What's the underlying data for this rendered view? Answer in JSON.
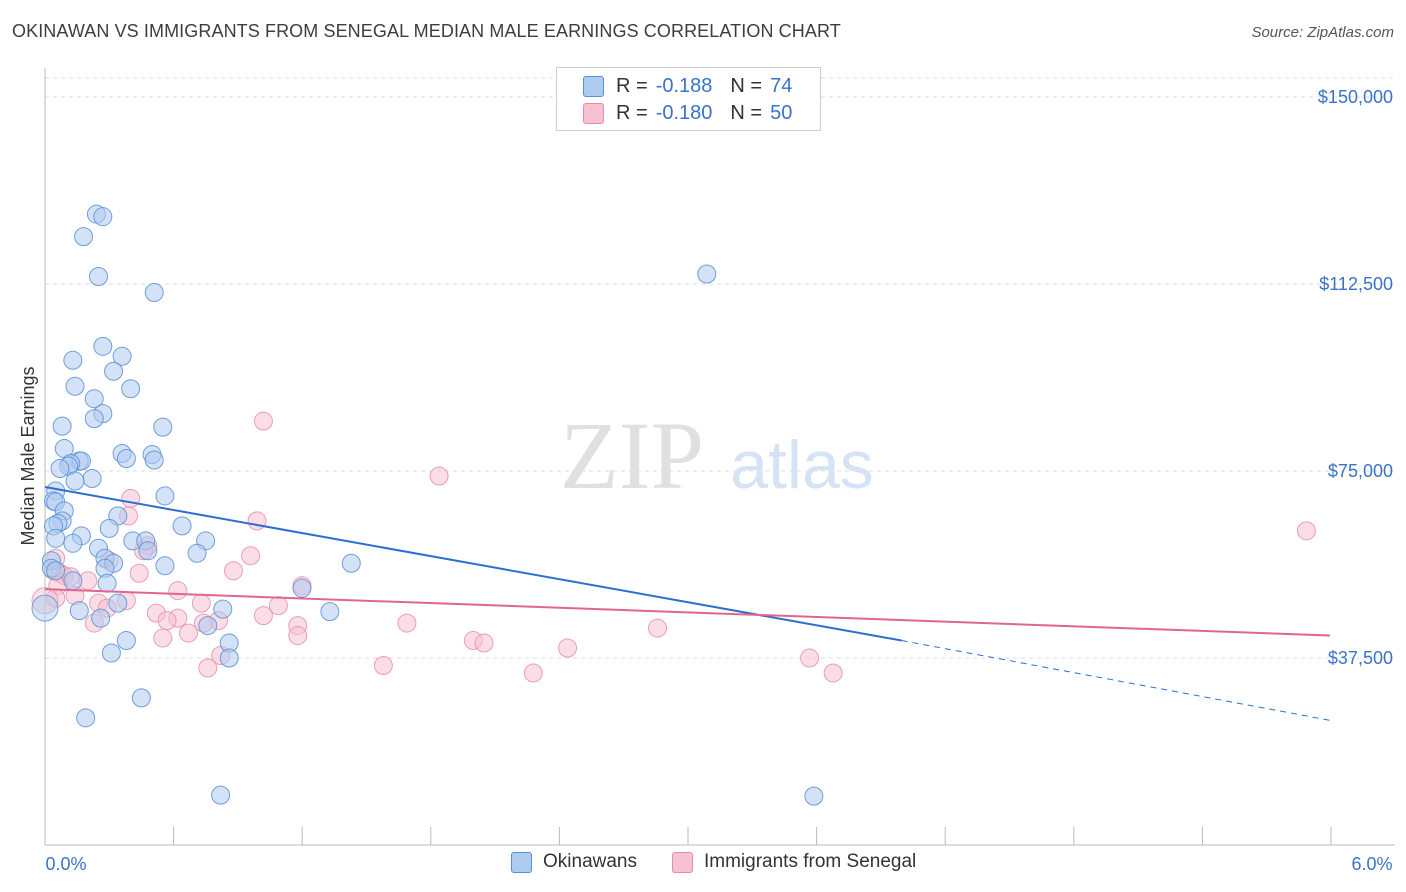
{
  "title": "OKINAWAN VS IMMIGRANTS FROM SENEGAL MEDIAN MALE EARNINGS CORRELATION CHART",
  "source": "Source: ZipAtlas.com",
  "watermark": {
    "zip": "ZIP",
    "atlas": "atlas"
  },
  "legend": {
    "rows": [
      {
        "r_label": "R =",
        "r_value": "-0.188",
        "n_label": "N =",
        "n_value": "74"
      },
      {
        "r_label": "R =",
        "r_value": "-0.180",
        "n_label": "N =",
        "n_value": "50"
      }
    ]
  },
  "colors": {
    "blue_fill": "#aecbf0",
    "blue_stroke": "#5b8fd4",
    "blue_line": "#2c6fd1",
    "pink_fill": "#f6c1d1",
    "pink_stroke": "#e88aa8",
    "pink_line": "#e0668f",
    "tick_text": "#3a73c9",
    "grid": "#dddddd"
  },
  "chart_data": {
    "type": "scatter",
    "title": "OKINAWAN VS IMMIGRANTS FROM SENEGAL MEDIAN MALE EARNINGS CORRELATION CHART",
    "xlabel": "",
    "ylabel": "Median Male Earnings",
    "xlim": [
      0,
      6
    ],
    "ylim": [
      0,
      150000
    ],
    "x_tick_labels": [
      "0.0%",
      "6.0%"
    ],
    "y_ticks": [
      37500,
      75000,
      112500,
      150000
    ],
    "y_tick_labels": [
      "$37,500",
      "$75,000",
      "$112,500",
      "$150,000"
    ],
    "grid": true,
    "series": [
      {
        "name": "Okinawans",
        "r": -0.188,
        "n": 74,
        "trend": {
          "x0": 0.0,
          "y0": 71800,
          "x1": 4.0,
          "y1": 41000,
          "dash_to_x": 6.0,
          "dash_to_y": 25000
        },
        "points": [
          [
            0.24,
            126500
          ],
          [
            0.27,
            126000
          ],
          [
            0.18,
            122000
          ],
          [
            0.25,
            114000
          ],
          [
            0.51,
            110800
          ],
          [
            0.27,
            100000
          ],
          [
            0.36,
            98000
          ],
          [
            0.13,
            97200
          ],
          [
            0.32,
            95000
          ],
          [
            0.14,
            92000
          ],
          [
            0.4,
            91500
          ],
          [
            0.23,
            89500
          ],
          [
            0.27,
            86500
          ],
          [
            0.23,
            85500
          ],
          [
            0.08,
            84000
          ],
          [
            0.55,
            83800
          ],
          [
            0.09,
            79500
          ],
          [
            0.36,
            78500
          ],
          [
            0.5,
            78300
          ],
          [
            0.38,
            77500
          ],
          [
            0.51,
            77200
          ],
          [
            0.16,
            77000
          ],
          [
            0.17,
            77000
          ],
          [
            0.12,
            76500
          ],
          [
            0.11,
            76000
          ],
          [
            0.07,
            75500
          ],
          [
            0.22,
            73500
          ],
          [
            0.14,
            73000
          ],
          [
            0.05,
            71000
          ],
          [
            0.56,
            70000
          ],
          [
            0.04,
            69000
          ],
          [
            0.05,
            68800
          ],
          [
            0.09,
            67000
          ],
          [
            0.34,
            66000
          ],
          [
            0.08,
            65000
          ],
          [
            0.06,
            64500
          ],
          [
            0.04,
            64000
          ],
          [
            0.64,
            64000
          ],
          [
            0.3,
            63500
          ],
          [
            0.17,
            62000
          ],
          [
            0.05,
            61500
          ],
          [
            0.41,
            61000
          ],
          [
            0.47,
            61000
          ],
          [
            0.13,
            60500
          ],
          [
            0.25,
            59500
          ],
          [
            0.48,
            59000
          ],
          [
            0.75,
            61000
          ],
          [
            0.71,
            58500
          ],
          [
            0.28,
            57500
          ],
          [
            0.03,
            57000
          ],
          [
            0.32,
            56500
          ],
          [
            0.56,
            56000
          ],
          [
            0.03,
            55500
          ],
          [
            0.28,
            55500
          ],
          [
            1.43,
            56500
          ],
          [
            0.05,
            55000
          ],
          [
            0.13,
            53000
          ],
          [
            0.29,
            52500
          ],
          [
            1.2,
            51500
          ],
          [
            0.34,
            48500
          ],
          [
            0.83,
            47300
          ],
          [
            0.16,
            47000
          ],
          [
            1.33,
            46800
          ],
          [
            0.26,
            45500
          ],
          [
            0.76,
            44000
          ],
          [
            0.38,
            41000
          ],
          [
            0.86,
            40500
          ],
          [
            0.31,
            38500
          ],
          [
            0.86,
            37500
          ],
          [
            3.09,
            114500
          ],
          [
            0.45,
            29500
          ],
          [
            0.19,
            25500
          ],
          [
            0.82,
            10000
          ],
          [
            3.59,
            9800
          ]
        ]
      },
      {
        "name": "Immigrants from Senegal",
        "r": -0.18,
        "n": 50,
        "trend": {
          "x0": 0.0,
          "y0": 51300,
          "x1": 6.0,
          "y1": 42000
        },
        "points": [
          [
            1.02,
            85000
          ],
          [
            1.84,
            74000
          ],
          [
            5.89,
            63000
          ],
          [
            0.4,
            69500
          ],
          [
            0.39,
            66000
          ],
          [
            0.99,
            65000
          ],
          [
            0.48,
            60000
          ],
          [
            0.46,
            59000
          ],
          [
            0.96,
            58000
          ],
          [
            0.05,
            57500
          ],
          [
            0.3,
            57000
          ],
          [
            0.04,
            55000
          ],
          [
            0.07,
            54500
          ],
          [
            0.88,
            55000
          ],
          [
            0.44,
            54500
          ],
          [
            0.09,
            54000
          ],
          [
            0.12,
            53800
          ],
          [
            0.2,
            53000
          ],
          [
            0.06,
            52000
          ],
          [
            1.2,
            52000
          ],
          [
            0.62,
            51000
          ],
          [
            0.14,
            50000
          ],
          [
            0.05,
            49500
          ],
          [
            0.38,
            49000
          ],
          [
            0.25,
            48500
          ],
          [
            0.73,
            48500
          ],
          [
            1.09,
            48000
          ],
          [
            0.29,
            47500
          ],
          [
            0.52,
            46500
          ],
          [
            1.02,
            46000
          ],
          [
            0.62,
            45500
          ],
          [
            0.57,
            45000
          ],
          [
            0.81,
            45000
          ],
          [
            0.74,
            44500
          ],
          [
            0.23,
            44500
          ],
          [
            1.18,
            44000
          ],
          [
            1.69,
            44500
          ],
          [
            2.86,
            43500
          ],
          [
            0.67,
            42500
          ],
          [
            0.55,
            41500
          ],
          [
            1.18,
            42000
          ],
          [
            2.0,
            41000
          ],
          [
            2.05,
            40500
          ],
          [
            2.44,
            39500
          ],
          [
            3.57,
            37500
          ],
          [
            0.82,
            38000
          ],
          [
            0.76,
            35500
          ],
          [
            1.58,
            36000
          ],
          [
            2.28,
            34500
          ],
          [
            3.68,
            34500
          ]
        ]
      }
    ]
  },
  "bottom_legend": {
    "series1": "Okinawans",
    "series2": "Immigrants from Senegal"
  },
  "x_axis": {
    "left_label": "0.0%",
    "right_label": "6.0%"
  }
}
